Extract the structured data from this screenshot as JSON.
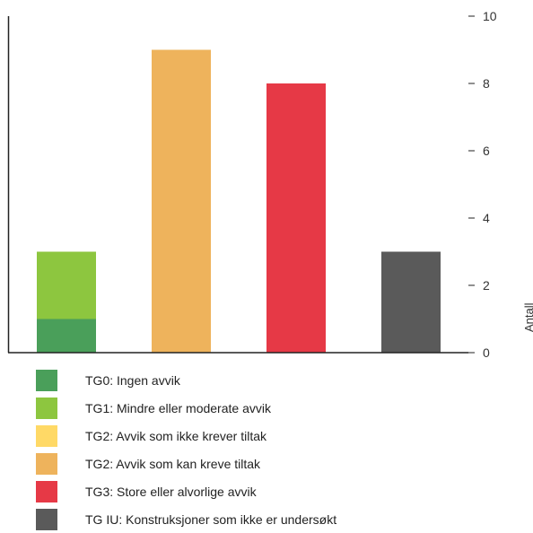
{
  "chart_data": {
    "type": "bar",
    "stacked": true,
    "categories": [
      "",
      "",
      "",
      ""
    ],
    "ylabel": "Antall",
    "ylim": [
      0,
      10
    ],
    "yticks": [
      0,
      2,
      4,
      6,
      8,
      10
    ],
    "y_axis_position": "right",
    "grid": false,
    "legend_placement": "bottom-left",
    "series": [
      {
        "name": "TG0: Ingen avvik",
        "color": "#4a9f5a",
        "values": [
          1,
          0,
          0,
          0
        ]
      },
      {
        "name": "TG1: Mindre eller moderate avvik",
        "color": "#8dc63f",
        "values": [
          2,
          0,
          0,
          0
        ]
      },
      {
        "name": "TG2: Avvik som ikke krever tiltak",
        "color": "#ffd966",
        "values": [
          0,
          0,
          0,
          0
        ]
      },
      {
        "name": "TG2: Avvik som kan kreve tiltak",
        "color": "#eeb35c",
        "values": [
          0,
          9,
          0,
          0
        ]
      },
      {
        "name": "TG3: Store eller alvorlige avvik",
        "color": "#e63946",
        "values": [
          0,
          0,
          8,
          0
        ]
      },
      {
        "name": "TG IU: Konstruksjoner som ikke er undersøkt",
        "color": "#5a5a5a",
        "values": [
          0,
          0,
          0,
          3
        ]
      }
    ]
  }
}
